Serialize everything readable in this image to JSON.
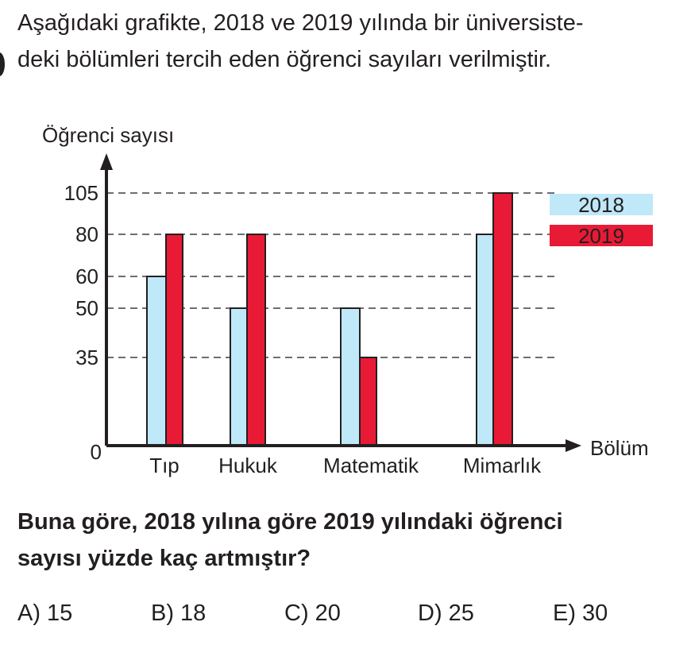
{
  "intro": "Aşağıdaki grafikte, 2018 ve 2019 yılında bir üniversitedeki bölümleri tercih eden öğrenci sayıları verilmiştir.",
  "intro_lines": [
    "Aşağıdaki grafikte, 2018 ve 2019 yılında bir üniversiste-",
    "deki bölümleri tercih eden öğrenci sayıları verilmiştir."
  ],
  "question_lines": [
    "Buna göre, 2018 yılına göre 2019 yılındaki öğrenci",
    "sayısı yüzde kaç artmıştır?"
  ],
  "options": [
    "A) 15",
    "B) 18",
    "C) 20",
    "D) 25",
    "E) 30"
  ],
  "chart_data": {
    "type": "bar",
    "xlabel": "Bölüm",
    "ylabel": "Öğrenci sayısı",
    "categories": [
      "Tıp",
      "Hukuk",
      "Matematik",
      "Mimarlık"
    ],
    "series": [
      {
        "name": "2018",
        "values": [
          60,
          50,
          50,
          80
        ],
        "color": "#bfe8f8"
      },
      {
        "name": "2019",
        "values": [
          80,
          80,
          35,
          105
        ],
        "color": "#e81a35"
      }
    ],
    "yticks": [
      0,
      35,
      50,
      60,
      80,
      105
    ],
    "ytick_labels": [
      "0",
      "35",
      "50",
      "60",
      "80",
      "105"
    ],
    "grid": "dashed at ticks",
    "legend": "top-right"
  }
}
